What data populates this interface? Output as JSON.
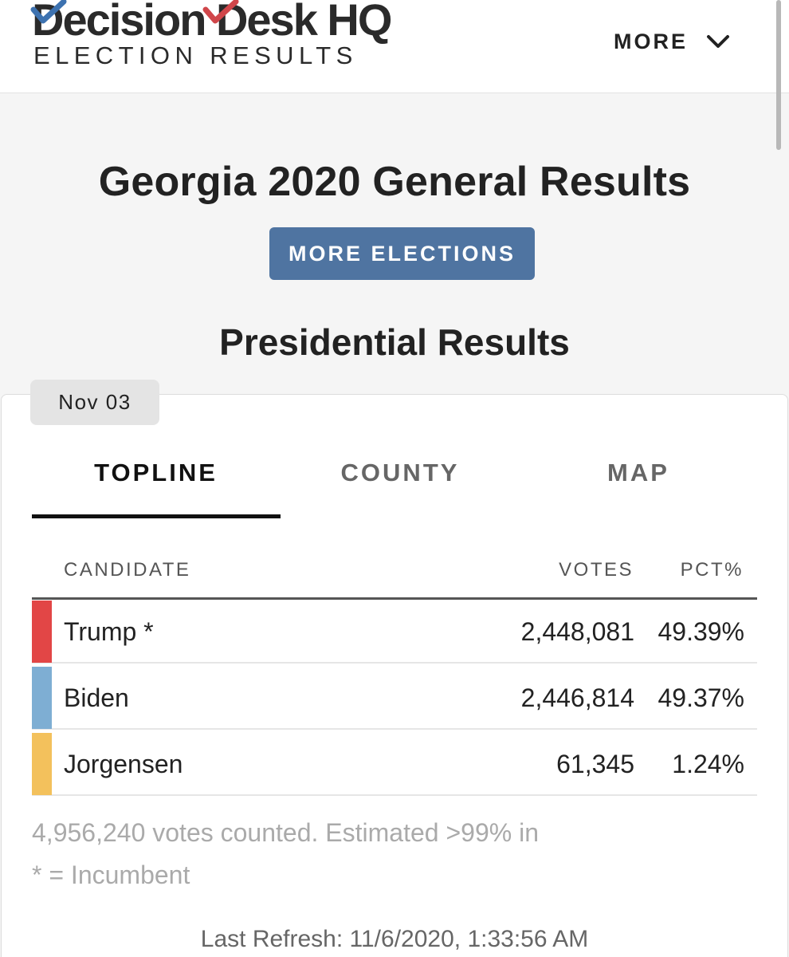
{
  "header": {
    "logo_main": "Decision Desk HQ",
    "logo_sub": "ELECTION RESULTS",
    "more_label": "MORE",
    "check_blue_color": "#3d72b0",
    "check_red_color": "#d0464a"
  },
  "page": {
    "title": "Georgia 2020 General Results",
    "more_elections_label": "MORE ELECTIONS",
    "section_title": "Presidential Results"
  },
  "card": {
    "date_tag": "Nov 03",
    "tabs": [
      {
        "label": "TOPLINE",
        "active": true
      },
      {
        "label": "COUNTY",
        "active": false
      },
      {
        "label": "MAP",
        "active": false
      }
    ],
    "columns": {
      "candidate": "CANDIDATE",
      "votes": "VOTES",
      "pct": "PCT%"
    },
    "rows": [
      {
        "name": "Trump *",
        "votes": "2,448,081",
        "pct": "49.39%",
        "color": "#e24646"
      },
      {
        "name": "Biden",
        "votes": "2,446,814",
        "pct": "49.37%",
        "color": "#7eaed3"
      },
      {
        "name": "Jorgensen",
        "votes": "61,345",
        "pct": "1.24%",
        "color": "#f3c15c"
      }
    ],
    "votes_counted": "4,956,240 votes counted. Estimated >99% in",
    "incumbent_note": "* = Incumbent",
    "last_refresh": "Last Refresh: 11/6/2020, 1:33:56 AM"
  }
}
